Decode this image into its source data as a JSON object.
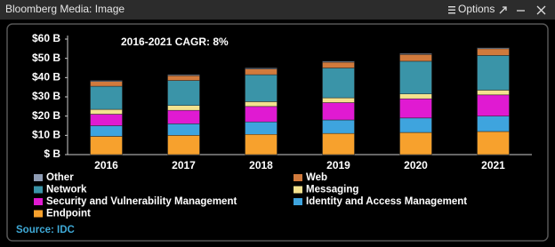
{
  "window": {
    "title": "Bloomberg Media: Image",
    "options": "Options"
  },
  "chart_data": {
    "type": "stacked-bar",
    "annotation": "2016-2021 CAGR: 8%",
    "source": "Source: IDC",
    "categories": [
      "2016",
      "2017",
      "2018",
      "2019",
      "2020",
      "2021"
    ],
    "series": [
      {
        "name": "Other",
        "color": "#8e9cb4",
        "values": [
          0.5,
          0.5,
          0.5,
          0.5,
          0.5,
          0.5
        ]
      },
      {
        "name": "Web",
        "color": "#d17a3c",
        "values": [
          2.5,
          2.5,
          3,
          3,
          3.5,
          3.5
        ]
      },
      {
        "name": "Network",
        "color": "#3a94a8",
        "values": [
          12,
          13,
          14,
          15.5,
          17,
          18
        ]
      },
      {
        "name": "Messaging",
        "color": "#f4e28e",
        "values": [
          2.5,
          2.5,
          2.5,
          2.5,
          2.5,
          2.5
        ]
      },
      {
        "name": "Security and Vulnerability Management",
        "color": "#e01ad2",
        "values": [
          6,
          7,
          8,
          9,
          10,
          11
        ]
      },
      {
        "name": "Identity and Access Management",
        "color": "#3ea4de",
        "values": [
          5.5,
          6,
          6.5,
          7,
          7.5,
          8
        ]
      },
      {
        "name": "Endpoint",
        "color": "#f7a12d",
        "values": [
          9.5,
          10,
          10.5,
          11,
          11.5,
          12
        ]
      }
    ],
    "ylim": [
      0,
      60
    ],
    "yticks": [
      {
        "value": 0,
        "label": "$ B"
      },
      {
        "value": 10,
        "label": "$10 B"
      },
      {
        "value": 20,
        "label": "$20 B"
      },
      {
        "value": 30,
        "label": "$30 B"
      },
      {
        "value": 40,
        "label": "$40 B"
      },
      {
        "value": 50,
        "label": "$50 B"
      },
      {
        "value": 60,
        "label": "$60 B"
      }
    ],
    "grid": false
  }
}
